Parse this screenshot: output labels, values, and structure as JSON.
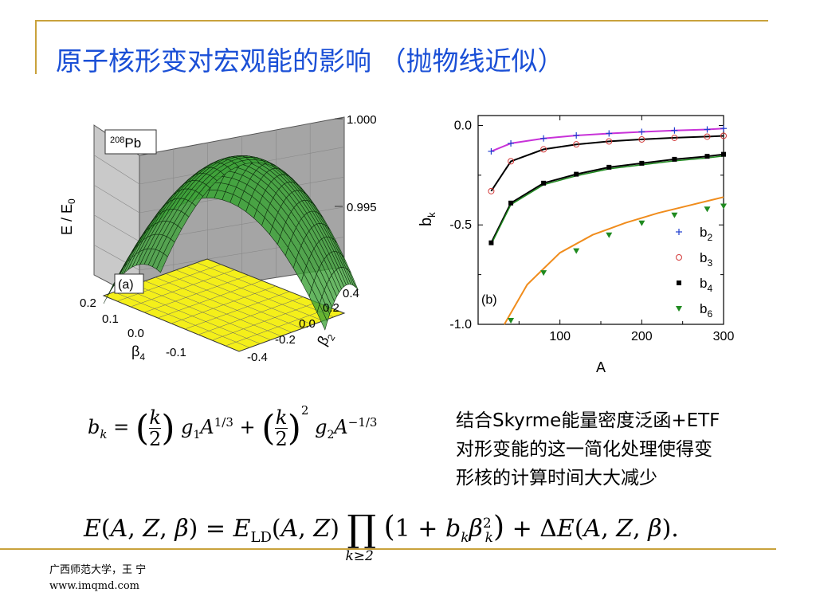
{
  "slide": {
    "title": "原子核形变对宏观能的影响 （抛物线近似）",
    "note_lines": [
      "结合Skyrme能量密度泛函+ETF",
      "对形变能的这一简化处理使得变",
      "形核的计算时间大大减少"
    ],
    "footer_lines": [
      "广西师范大学，王 宁",
      "www.imqmd.com"
    ],
    "formula_bk": "b_k = (k/2) g1 A^{1/3} + (k/2)^2 g2 A^{-1/3}",
    "formula_E": "E(A, Z, β) = E_LD(A, Z) ∏_{k≥2} (1 + b_k β_k²) + ΔE(A, Z, β)."
  },
  "colors": {
    "title": "#1a4fd6",
    "rule": "#c9a23c",
    "surface": "#3fa33a",
    "floor": "#f4ef1a",
    "b2": "#1f3ecf",
    "b3": "#d33a3a",
    "b4": "#000000",
    "b6": "#1f8a1f",
    "line_b2": "#c832d8",
    "line_b6": "#f08c1c"
  },
  "chart_data": [
    {
      "type": "surface",
      "panel_label": "(a)",
      "nucleus": "208Pb",
      "zlabel": "E / E0",
      "xlabel": "β4",
      "ylabel": "β2",
      "z_ticks": [
        "0.995",
        "1.000"
      ],
      "x_ticks": [
        "0.2",
        "0.1",
        "0.0",
        "-0.1"
      ],
      "y_ticks": [
        "0.4",
        "0.2",
        "0.0",
        "-0.2",
        "-0.4"
      ],
      "z_range": [
        0.99,
        1.0
      ],
      "surface_peak": 1.0
    },
    {
      "type": "scatter",
      "panel_label": "(b)",
      "xlabel": "A",
      "ylabel": "bk",
      "xlim": [
        0,
        300
      ],
      "ylim": [
        -1.0,
        0.05
      ],
      "x_ticks": [
        "100",
        "200",
        "300"
      ],
      "y_ticks": [
        "0.0",
        "-0.5",
        "-1.0"
      ],
      "legend_position": "bottom-right",
      "series": [
        {
          "name": "b2",
          "sub": "2",
          "marker": "plus",
          "x": [
            16,
            40,
            80,
            120,
            160,
            200,
            240,
            280,
            300
          ],
          "y": [
            -0.13,
            -0.09,
            -0.065,
            -0.05,
            -0.04,
            -0.032,
            -0.025,
            -0.02,
            -0.015
          ]
        },
        {
          "name": "b3",
          "sub": "3",
          "marker": "circle",
          "x": [
            16,
            40,
            80,
            120,
            160,
            200,
            240,
            280,
            300
          ],
          "y": [
            -0.33,
            -0.18,
            -0.12,
            -0.095,
            -0.08,
            -0.07,
            -0.062,
            -0.056,
            -0.052
          ]
        },
        {
          "name": "b4",
          "sub": "4",
          "marker": "square",
          "x": [
            16,
            40,
            80,
            120,
            160,
            200,
            240,
            280,
            300
          ],
          "y": [
            -0.59,
            -0.39,
            -0.29,
            -0.245,
            -0.21,
            -0.19,
            -0.17,
            -0.155,
            -0.145
          ]
        },
        {
          "name": "b6",
          "sub": "6",
          "marker": "triangle",
          "x": [
            40,
            80,
            120,
            160,
            200,
            240,
            280,
            300
          ],
          "y": [
            -0.98,
            -0.74,
            -0.63,
            -0.55,
            -0.49,
            -0.45,
            -0.42,
            -0.405
          ]
        }
      ],
      "fit_lines": [
        {
          "x": [
            16,
            40,
            80,
            120,
            160,
            200,
            240,
            280,
            300
          ],
          "y": [
            -0.13,
            -0.09,
            -0.065,
            -0.05,
            -0.04,
            -0.032,
            -0.025,
            -0.02,
            -0.015
          ]
        },
        {
          "x": [
            16,
            40,
            80,
            120,
            160,
            200,
            240,
            280,
            300
          ],
          "y": [
            -0.33,
            -0.18,
            -0.12,
            -0.095,
            -0.08,
            -0.07,
            -0.062,
            -0.056,
            -0.052
          ]
        },
        {
          "x": [
            16,
            40,
            80,
            120,
            160,
            200,
            240,
            280,
            300
          ],
          "y": [
            -0.59,
            -0.39,
            -0.29,
            -0.245,
            -0.21,
            -0.19,
            -0.17,
            -0.155,
            -0.145
          ]
        },
        {
          "x": [
            32,
            60,
            100,
            140,
            180,
            220,
            260,
            300
          ],
          "y": [
            -1.0,
            -0.8,
            -0.64,
            -0.55,
            -0.49,
            -0.44,
            -0.4,
            -0.36
          ]
        }
      ]
    }
  ]
}
